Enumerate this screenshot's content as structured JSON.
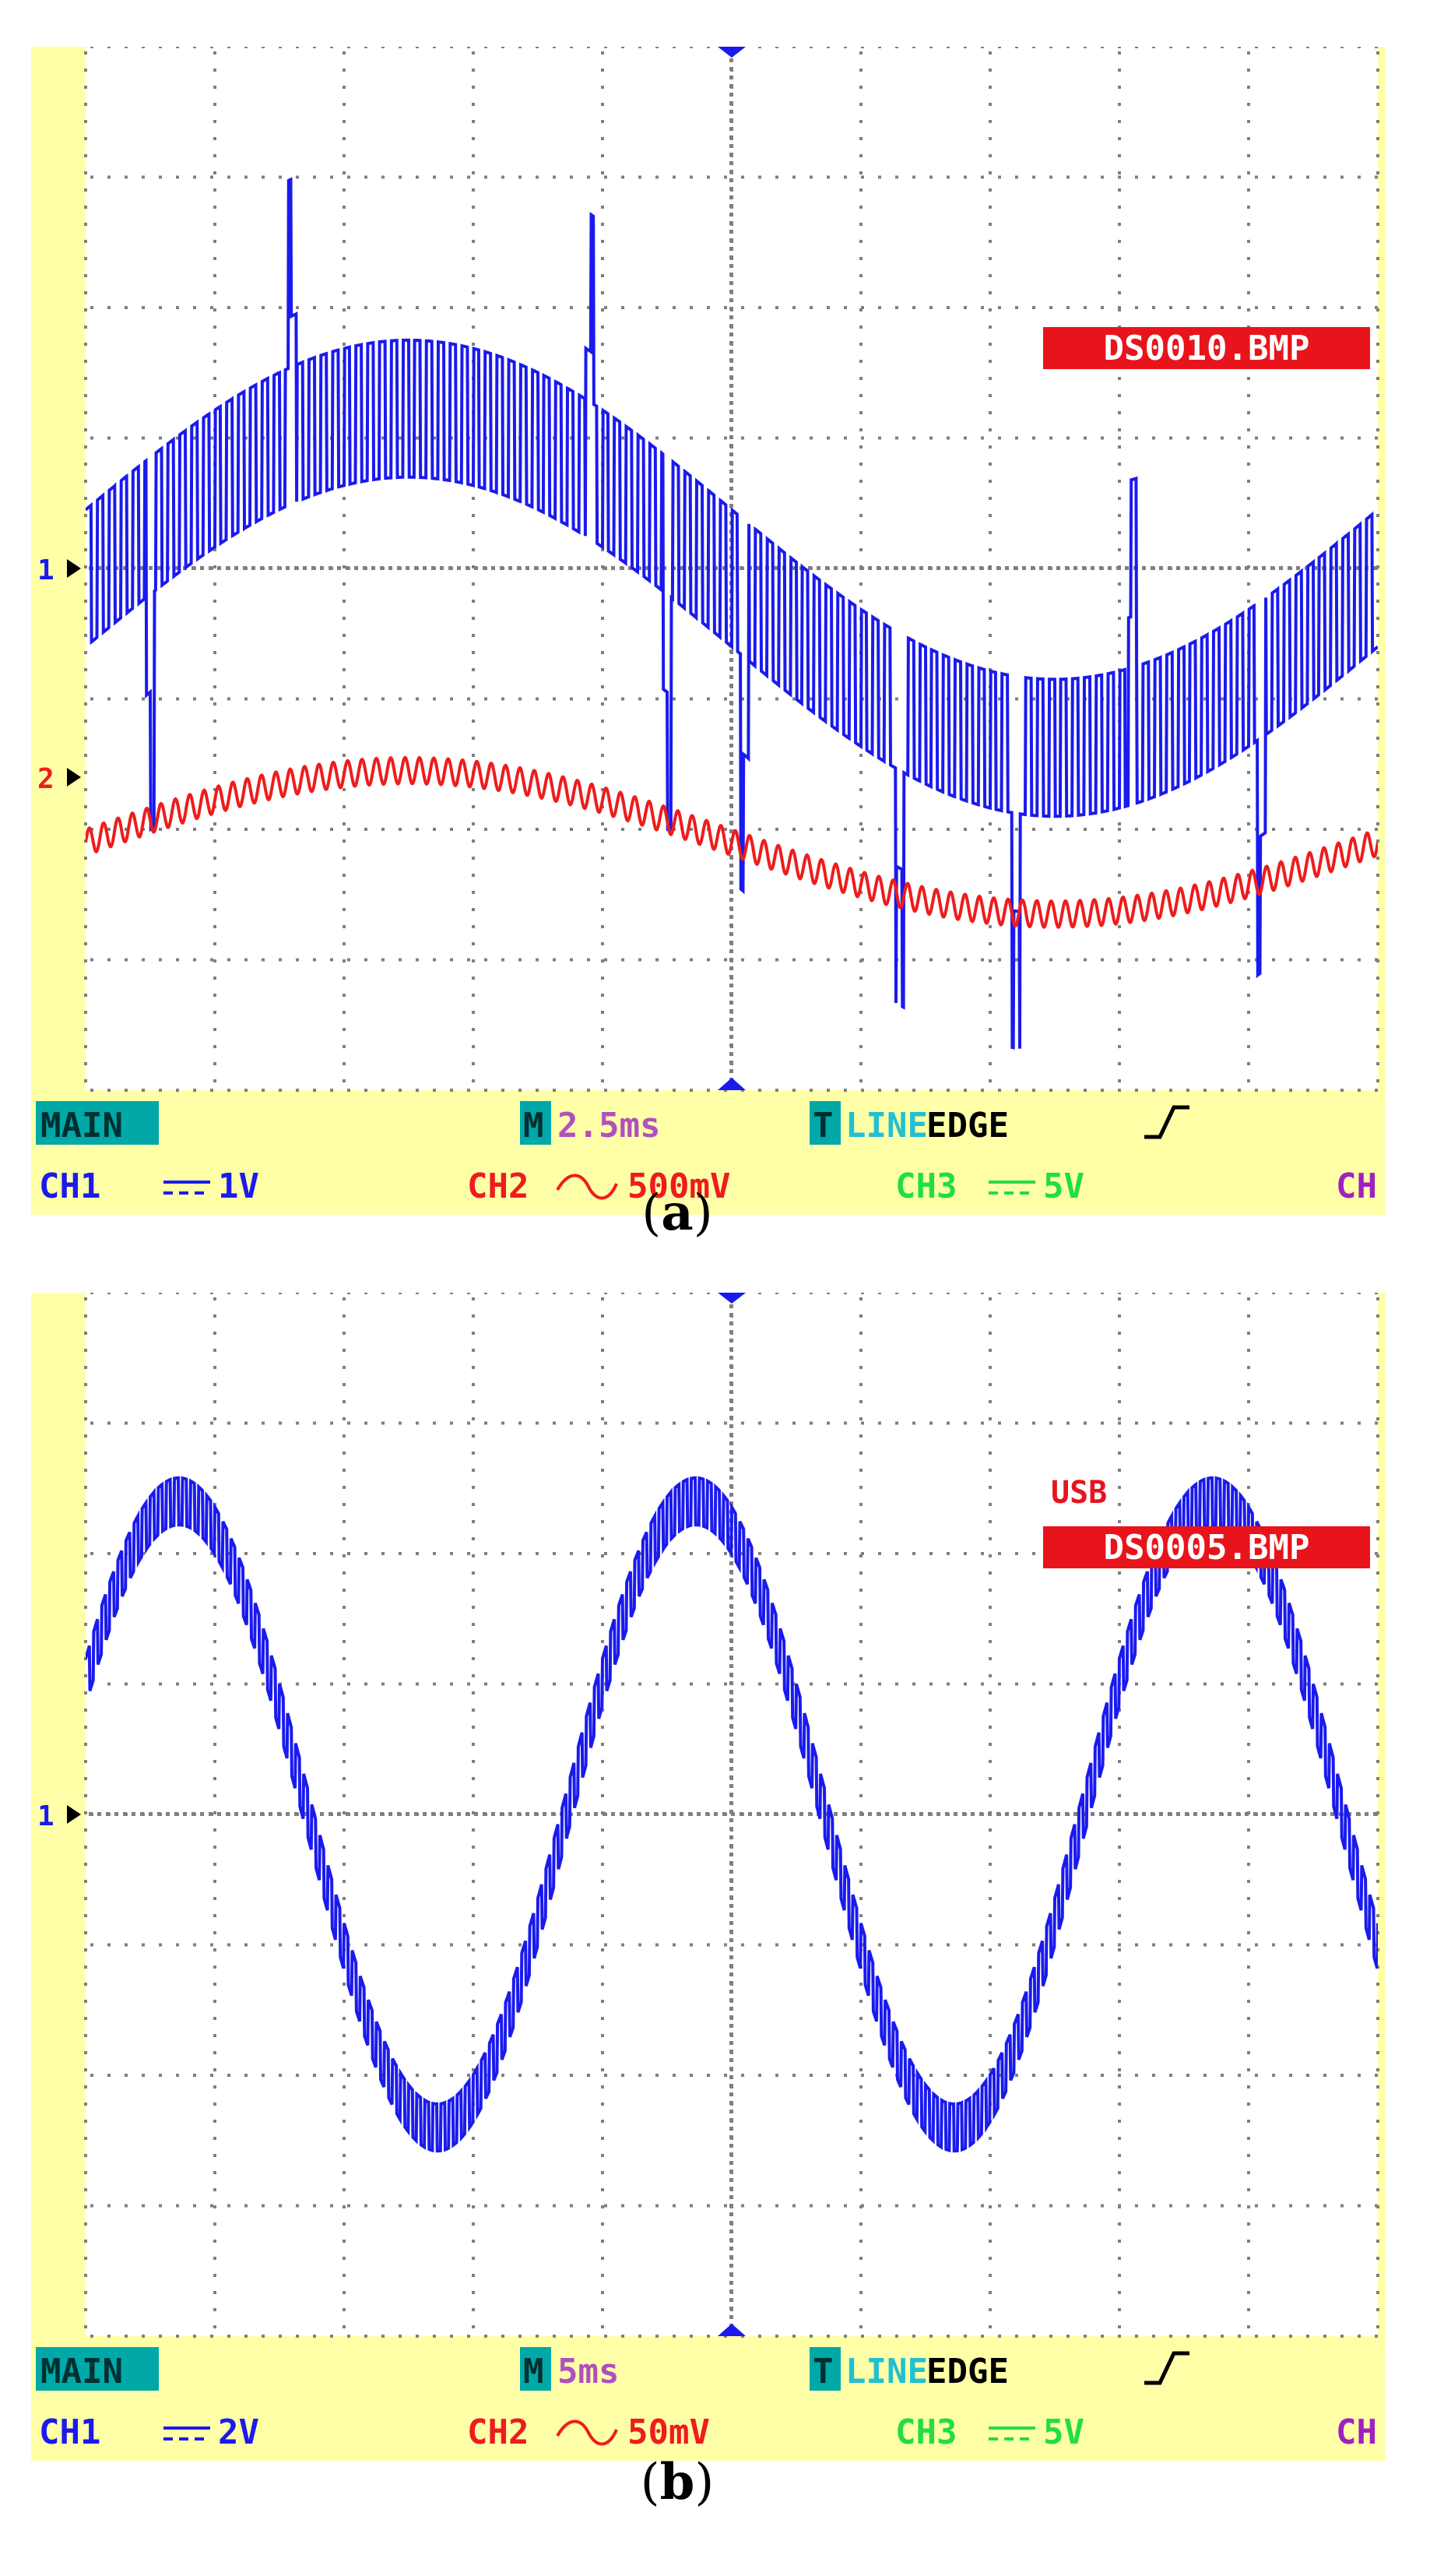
{
  "colors": {
    "background": "#ffffff",
    "bezel": "#ffffa8",
    "grid": "#7f7f7f",
    "ch1": "#1a1aee",
    "ch2": "#ee1c1c",
    "ch3": "#22dd44",
    "ch4": "#a020c0",
    "time": "#b050c0",
    "main": "#00a8a8",
    "badge": "#e8141c",
    "badge_text": "#ffffff",
    "edge": "#000000"
  },
  "chart_data": [
    {
      "type": "line",
      "caption_label": "a",
      "caption_open": "(",
      "caption_close": ")",
      "file_badge": "DS0010.BMP",
      "usb_label": "",
      "grid": {
        "divisions_x": 10,
        "divisions_y": 8
      },
      "ylim": [
        -4,
        4
      ],
      "xlim": [
        0,
        10
      ],
      "status": {
        "mode": "MAIN",
        "timebase_prefix": "M",
        "timebase": "2.5ms",
        "trigger_prefix": "T",
        "trigger_source": "LINE",
        "trigger_type": "EDGE",
        "trigger_slope": "rising",
        "ch1_label": "CH1",
        "ch1_coupling": "DC",
        "ch1_scale": "1V",
        "ch2_label": "CH2",
        "ch2_coupling": "AC",
        "ch2_scale": "500mV",
        "ch3_label": "CH3",
        "ch3_coupling": "DC",
        "ch3_scale": "5V",
        "ch4_label": "CH"
      },
      "markers": [
        {
          "channel": "1",
          "label": "1",
          "level_div": 0
        },
        {
          "channel": "2",
          "label": "2",
          "level_div": -1.6
        }
      ],
      "series": [
        {
          "channel": "1",
          "color": "#1a1aee",
          "kind": "pwm_sine",
          "offset_div": 0,
          "amplitude_div": 1.3,
          "cycles": 1.0,
          "phase_deg": 0,
          "pulse_count": 110,
          "pulse_depth_div": 1.05,
          "spike_positions_div": [
            0.5,
            1.6,
            3.9,
            4.5,
            5.1,
            6.3,
            7.2,
            8.1,
            9.1
          ],
          "spike_depth_div": 1.8
        },
        {
          "channel": "2",
          "color": "#ee1c1c",
          "kind": "ripple_sine",
          "offset_div": -2.1,
          "amplitude_div": 0.55,
          "cycles": 1.0,
          "phase_deg": 0,
          "ripple_count": 90,
          "ripple_amp_div": 0.1
        }
      ]
    },
    {
      "type": "line",
      "caption_label": "b",
      "caption_open": "(",
      "caption_close": ")",
      "file_badge": "DS0005.BMP",
      "usb_label": "USB",
      "grid": {
        "divisions_x": 10,
        "divisions_y": 8
      },
      "ylim": [
        -4,
        4
      ],
      "xlim": [
        0,
        10
      ],
      "status": {
        "mode": "MAIN",
        "timebase_prefix": "M",
        "timebase": "5ms",
        "trigger_prefix": "T",
        "trigger_source": "LINE",
        "trigger_type": "EDGE",
        "trigger_slope": "rising",
        "ch1_label": "CH1",
        "ch1_coupling": "DC",
        "ch1_scale": "2V",
        "ch2_label": "CH2",
        "ch2_coupling": "AC",
        "ch2_scale": "50mV",
        "ch3_label": "CH3",
        "ch3_coupling": "DC",
        "ch3_scale": "5V",
        "ch4_label": "CH"
      },
      "markers": [
        {
          "channel": "1",
          "label": "1",
          "level_div": 0
        }
      ],
      "series": [
        {
          "channel": "1",
          "color": "#1a1aee",
          "kind": "staircase_sine",
          "offset_div": 0,
          "amplitude_div": 2.4,
          "cycles": 2.5,
          "phase_deg": 25,
          "pulse_count": 160,
          "step_jitter_div": 0.18
        }
      ]
    }
  ]
}
